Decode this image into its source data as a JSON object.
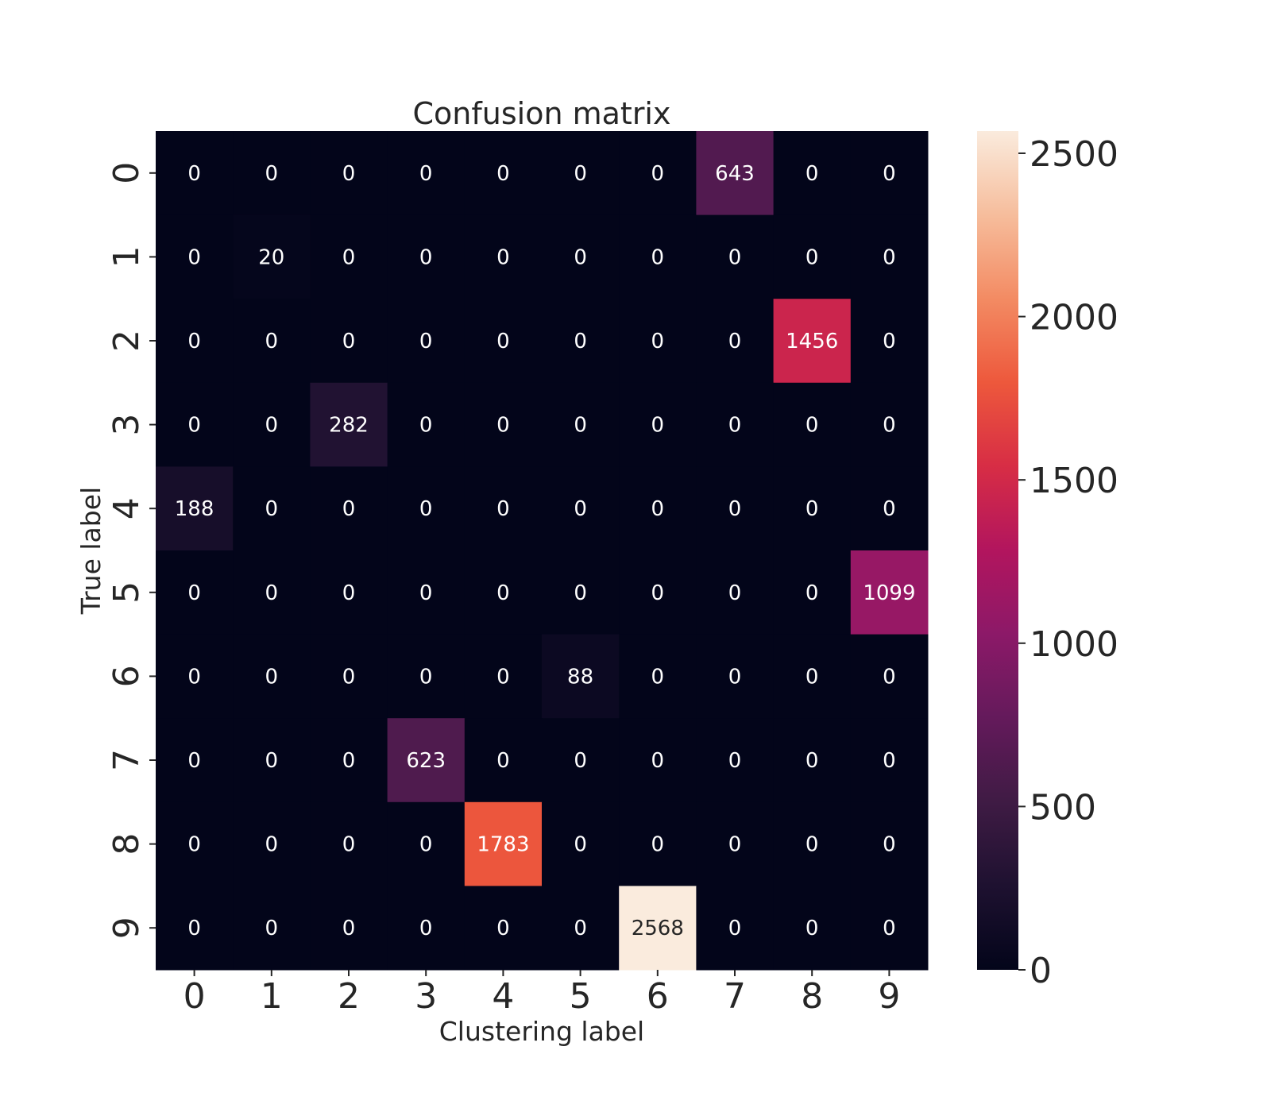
{
  "chart_data": {
    "type": "heatmap",
    "title": "Confusion matrix",
    "xlabel": "Clustering label",
    "ylabel": "True label",
    "x_categories": [
      "0",
      "1",
      "2",
      "3",
      "4",
      "5",
      "6",
      "7",
      "8",
      "9"
    ],
    "y_categories": [
      "0",
      "1",
      "2",
      "3",
      "4",
      "5",
      "6",
      "7",
      "8",
      "9"
    ],
    "values": [
      [
        0,
        0,
        0,
        0,
        0,
        0,
        0,
        643,
        0,
        0
      ],
      [
        0,
        20,
        0,
        0,
        0,
        0,
        0,
        0,
        0,
        0
      ],
      [
        0,
        0,
        0,
        0,
        0,
        0,
        0,
        0,
        1456,
        0
      ],
      [
        0,
        0,
        282,
        0,
        0,
        0,
        0,
        0,
        0,
        0
      ],
      [
        188,
        0,
        0,
        0,
        0,
        0,
        0,
        0,
        0,
        0
      ],
      [
        0,
        0,
        0,
        0,
        0,
        0,
        0,
        0,
        0,
        1099
      ],
      [
        0,
        0,
        0,
        0,
        0,
        88,
        0,
        0,
        0,
        0
      ],
      [
        0,
        0,
        0,
        623,
        0,
        0,
        0,
        0,
        0,
        0
      ],
      [
        0,
        0,
        0,
        0,
        1783,
        0,
        0,
        0,
        0,
        0
      ],
      [
        0,
        0,
        0,
        0,
        0,
        0,
        2568,
        0,
        0,
        0
      ]
    ],
    "colorbar": {
      "range": [
        0,
        2568
      ],
      "ticks": [
        0,
        500,
        1000,
        1500,
        2000,
        2500
      ],
      "colormap": "rocket"
    },
    "annotate": true
  }
}
